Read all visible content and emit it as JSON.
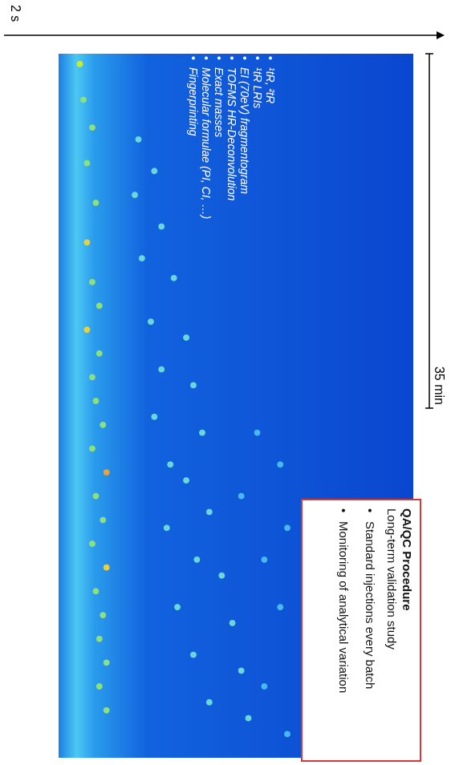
{
  "chart_data": {
    "type": "scatter",
    "xlabel": "35 min",
    "ylabel": "2 s",
    "xlim": [
      0,
      35
    ],
    "ylim": [
      0,
      2
    ],
    "grid": false,
    "tick_labels": false,
    "x": [
      0.51,
      2.29,
      3.67,
      5.44,
      7.41,
      9.38,
      11.35,
      12.53,
      13.72,
      14.9,
      16.08,
      17.26,
      18.45,
      19.63,
      20.81,
      21.99,
      23.18,
      24.36,
      25.54,
      26.72,
      27.91,
      29.09,
      30.27,
      31.45,
      32.64,
      4.26,
      5.83,
      7.02,
      8.59,
      10.17,
      11.15,
      13.32,
      14.11,
      15.69,
      16.48,
      18.05,
      18.84,
      20.42,
      21.21,
      22.78,
      23.57,
      25.15,
      25.94,
      27.51,
      28.3,
      29.88,
      30.67,
      32.24,
      33.03,
      18.84,
      20.42,
      21.99,
      23.57,
      25.15,
      27.51,
      31.45,
      33.82
    ],
    "values": [
      0.12,
      0.14,
      0.19,
      0.16,
      0.21,
      0.16,
      0.19,
      0.23,
      0.16,
      0.23,
      0.19,
      0.21,
      0.25,
      0.19,
      0.27,
      0.21,
      0.25,
      0.19,
      0.27,
      0.21,
      0.25,
      0.23,
      0.27,
      0.23,
      0.27,
      0.45,
      0.54,
      0.43,
      0.58,
      0.47,
      0.65,
      0.52,
      0.72,
      0.58,
      0.76,
      0.54,
      0.81,
      0.63,
      0.72,
      0.85,
      0.61,
      0.78,
      0.92,
      0.67,
      0.98,
      0.76,
      1.03,
      0.85,
      1.07,
      1.12,
      1.25,
      1.03,
      1.29,
      1.16,
      1.25,
      1.16,
      1.29
    ],
    "colors": [
      "#c8ec30",
      "#8ee07a",
      "#8ee07a",
      "#8ee07a",
      "#8ee07a",
      "#f0d030",
      "#8ee07a",
      "#8ee07a",
      "#f0d030",
      "#8ee07a",
      "#8ee07a",
      "#8ee07a",
      "#8ee07a",
      "#8ee07a",
      "#f0a030",
      "#8ee07a",
      "#8ee07a",
      "#8ee07a",
      "#f0d030",
      "#8ee07a",
      "#8ee07a",
      "#8ee07a",
      "#8ee07a",
      "#8ee07a",
      "#8ee07a",
      "#6ad8d8",
      "#6ad8d8",
      "#6ad8d8",
      "#6ad8d8",
      "#6ad8d8",
      "#6ad8d8",
      "#6ad8d8",
      "#6ad8d8",
      "#6ad8d8",
      "#6ad8d8",
      "#6ad8d8",
      "#6ad8d8",
      "#6ad8d8",
      "#6ad8d8",
      "#6ad8d8",
      "#6ad8d8",
      "#6ad8d8",
      "#6ad8d8",
      "#6ad8d8",
      "#6ad8d8",
      "#6ad8d8",
      "#6ad8d8",
      "#6ad8d8",
      "#6ad8d8",
      "#48b8f0",
      "#48b8f0",
      "#48b8f0",
      "#48b8f0",
      "#48b8f0",
      "#48b8f0",
      "#48b8f0",
      "#48b8f0"
    ],
    "annotations": [
      "¹tR, ²tR",
      "¹tR LRIs",
      "EI (70eV) fragmentogram",
      "TOFMS HR-Deconvolution",
      "Exact masses",
      "Molecular formulae (PI, CI, …)",
      "Fingerprinting"
    ],
    "text_box": {
      "title": "QA/QC Procedure",
      "subtitle": "Long-term validation study",
      "items": [
        "Standard injections every batch",
        "Monitoring of analytical variation"
      ]
    }
  }
}
